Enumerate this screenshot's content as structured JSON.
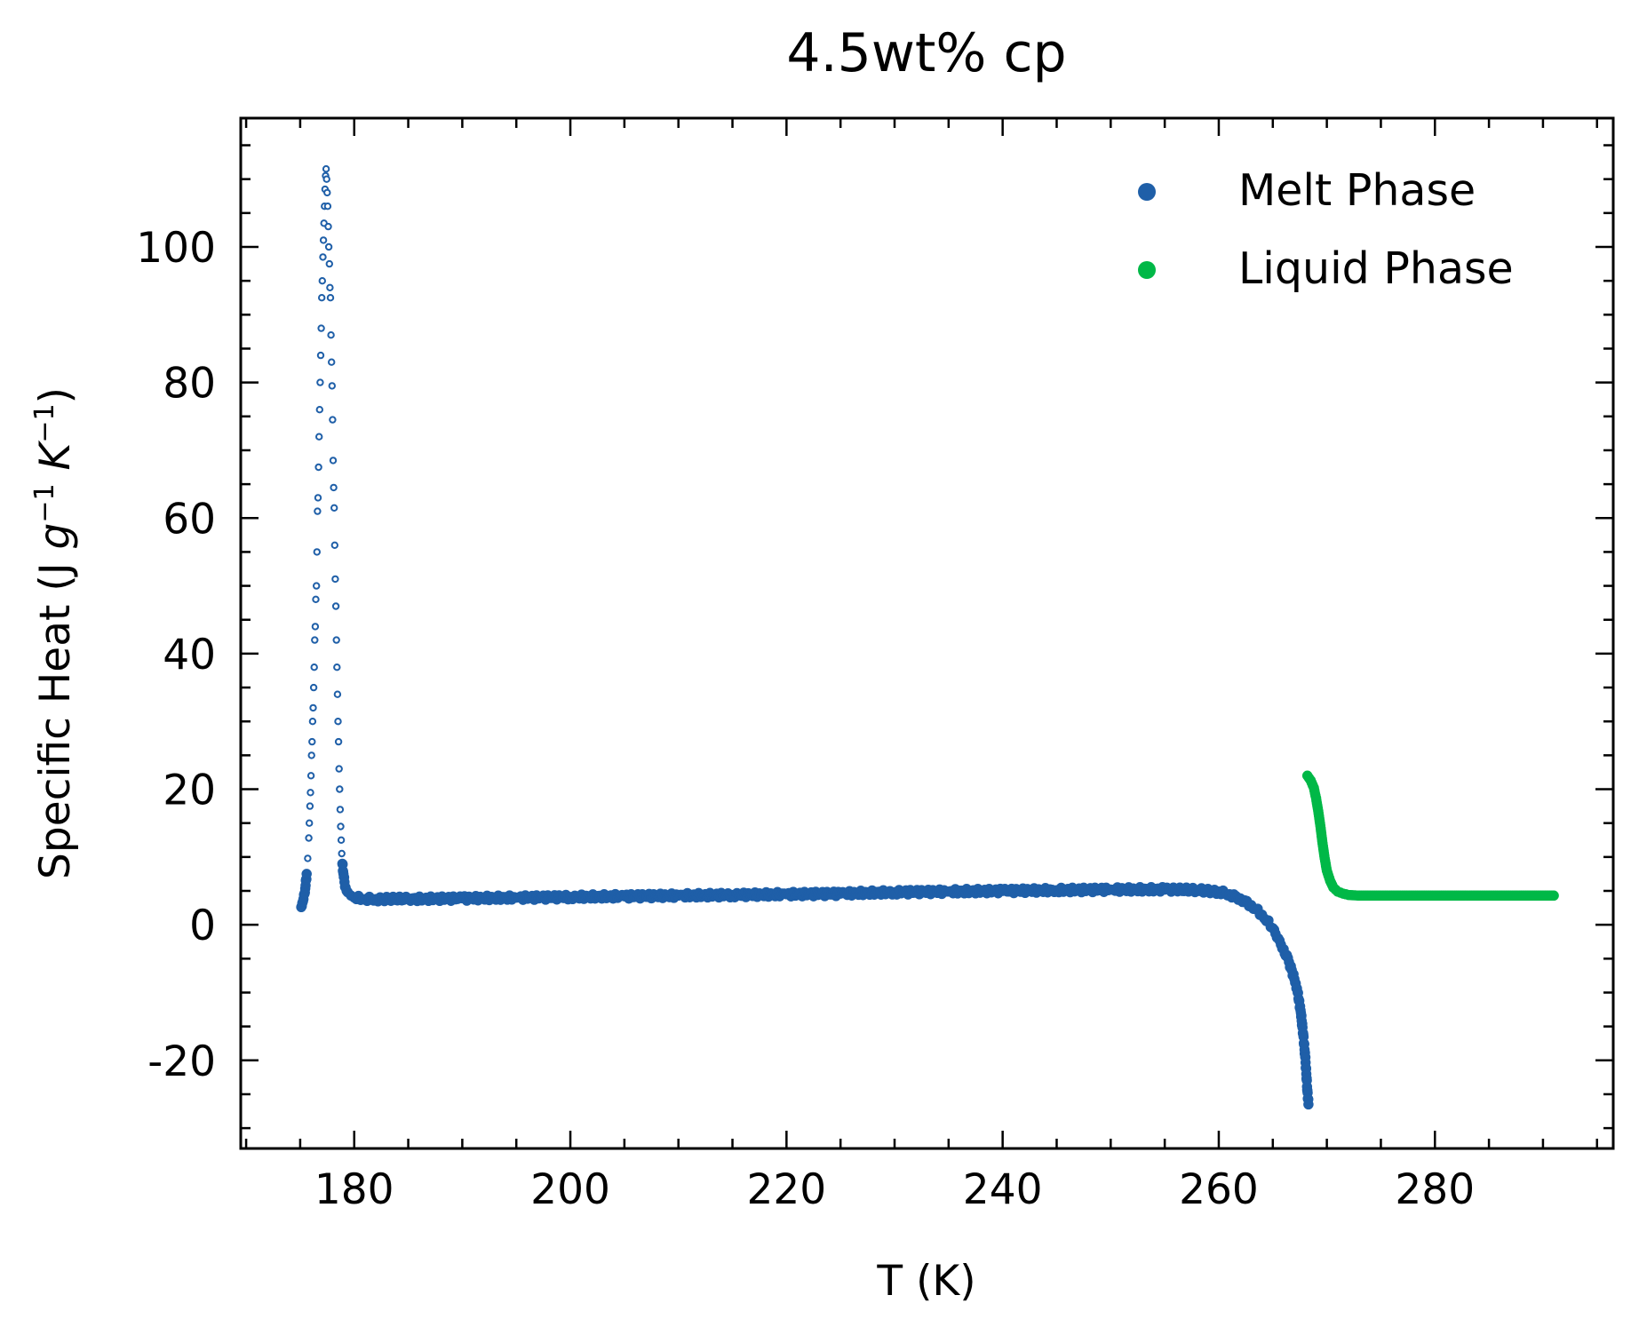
{
  "chart_data": {
    "type": "scatter",
    "title": "4.5wt% cp",
    "xlabel": "T (K)",
    "ylabel": {
      "prefix": "Specific Heat (J ",
      "g": "g",
      "g_exp": "−1",
      "K": "K",
      "K_exp": "−1",
      "suffix": ")"
    },
    "xlim": [
      169.5,
      296.5
    ],
    "ylim": [
      -33.0,
      119.0
    ],
    "x_ticks": [
      180,
      200,
      220,
      240,
      260,
      280
    ],
    "y_ticks": [
      -20,
      0,
      20,
      40,
      60,
      80,
      100
    ],
    "x_tick_labels": [
      "180",
      "200",
      "220",
      "240",
      "260",
      "280"
    ],
    "y_tick_labels": [
      "-20",
      "0",
      "20",
      "40",
      "60",
      "80",
      "100"
    ],
    "grid": false,
    "legend_position": "top-right",
    "series": [
      {
        "name": "Melt Phase",
        "color": "#1f5fa8",
        "points": [
          [
            175.1,
            2.6
          ],
          [
            175.2,
            3.2
          ],
          [
            175.3,
            3.8
          ],
          [
            175.4,
            4.6
          ],
          [
            175.5,
            5.8
          ],
          [
            175.6,
            7.5
          ],
          [
            175.7,
            9.8
          ],
          [
            175.8,
            12.8
          ],
          [
            175.85,
            15.0
          ],
          [
            175.9,
            17.5
          ],
          [
            175.95,
            19.5
          ],
          [
            176.0,
            22.0
          ],
          [
            176.05,
            25.0
          ],
          [
            176.1,
            27.0
          ],
          [
            176.15,
            30.0
          ],
          [
            176.2,
            32.0
          ],
          [
            176.25,
            35.0
          ],
          [
            176.3,
            38.0
          ],
          [
            176.35,
            42.0
          ],
          [
            176.4,
            44.0
          ],
          [
            176.45,
            48.0
          ],
          [
            176.5,
            50.0
          ],
          [
            176.55,
            55.0
          ],
          [
            176.6,
            61.0
          ],
          [
            176.65,
            63.0
          ],
          [
            176.7,
            67.5
          ],
          [
            176.75,
            72.0
          ],
          [
            176.8,
            76.0
          ],
          [
            176.85,
            80.0
          ],
          [
            176.9,
            84.0
          ],
          [
            176.95,
            88.0
          ],
          [
            177.0,
            92.5
          ],
          [
            177.05,
            95.0
          ],
          [
            177.1,
            98.5
          ],
          [
            177.15,
            101.0
          ],
          [
            177.2,
            103.5
          ],
          [
            177.25,
            106.0
          ],
          [
            177.3,
            108.5
          ],
          [
            177.35,
            110.5
          ],
          [
            177.4,
            111.5
          ],
          [
            177.45,
            110.0
          ],
          [
            177.5,
            108.0
          ],
          [
            177.55,
            106.0
          ],
          [
            177.6,
            103.0
          ],
          [
            177.65,
            100.0
          ],
          [
            177.7,
            97.5
          ],
          [
            177.75,
            94.0
          ],
          [
            177.8,
            92.5
          ],
          [
            177.85,
            87.0
          ],
          [
            177.9,
            83.0
          ],
          [
            177.95,
            79.5
          ],
          [
            178.0,
            74.5
          ],
          [
            178.05,
            68.5
          ],
          [
            178.1,
            64.5
          ],
          [
            178.15,
            61.5
          ],
          [
            178.2,
            56.0
          ],
          [
            178.25,
            51.0
          ],
          [
            178.3,
            47.0
          ],
          [
            178.35,
            42.0
          ],
          [
            178.4,
            38.0
          ],
          [
            178.45,
            34.0
          ],
          [
            178.5,
            30.0
          ],
          [
            178.55,
            27.0
          ],
          [
            178.6,
            23.0
          ],
          [
            178.65,
            20.0
          ],
          [
            178.7,
            17.0
          ],
          [
            178.75,
            14.5
          ],
          [
            178.8,
            12.5
          ],
          [
            178.85,
            10.5
          ],
          [
            178.9,
            9.0
          ],
          [
            179.0,
            7.5
          ],
          [
            179.1,
            6.3
          ],
          [
            179.2,
            5.5
          ],
          [
            179.4,
            4.8
          ],
          [
            179.7,
            4.3
          ],
          [
            180.0,
            4.0
          ],
          [
            181.0,
            3.8
          ],
          [
            182.0,
            3.8
          ],
          [
            185.0,
            3.8
          ],
          [
            190.0,
            3.9
          ],
          [
            195.0,
            4.0
          ],
          [
            200.0,
            4.1
          ],
          [
            205.0,
            4.2
          ],
          [
            210.0,
            4.3
          ],
          [
            215.0,
            4.4
          ],
          [
            220.0,
            4.5
          ],
          [
            225.0,
            4.6
          ],
          [
            230.0,
            4.8
          ],
          [
            235.0,
            4.9
          ],
          [
            240.0,
            5.0
          ],
          [
            245.0,
            5.1
          ],
          [
            250.0,
            5.2
          ],
          [
            255.0,
            5.2
          ],
          [
            258.0,
            5.1
          ],
          [
            260.0,
            4.9
          ],
          [
            261.0,
            4.5
          ],
          [
            262.0,
            3.9
          ],
          [
            263.0,
            2.9
          ],
          [
            264.0,
            1.5
          ],
          [
            265.0,
            -0.5
          ],
          [
            265.5,
            -2.0
          ],
          [
            266.0,
            -3.6
          ],
          [
            266.5,
            -5.5
          ],
          [
            267.0,
            -8.0
          ],
          [
            267.3,
            -10.0
          ],
          [
            267.6,
            -13.0
          ],
          [
            267.8,
            -16.0
          ],
          [
            268.0,
            -19.5
          ],
          [
            268.1,
            -22.0
          ],
          [
            268.2,
            -24.5
          ],
          [
            268.3,
            -26.5
          ]
        ]
      },
      {
        "name": "Liquid Phase",
        "color": "#00b847",
        "points": [
          [
            268.2,
            22.0
          ],
          [
            268.5,
            21.3
          ],
          [
            268.8,
            20.2
          ],
          [
            269.0,
            18.7
          ],
          [
            269.2,
            16.8
          ],
          [
            269.4,
            14.6
          ],
          [
            269.6,
            12.0
          ],
          [
            269.8,
            9.8
          ],
          [
            270.0,
            8.0
          ],
          [
            270.3,
            6.5
          ],
          [
            270.6,
            5.5
          ],
          [
            271.0,
            4.9
          ],
          [
            271.5,
            4.6
          ],
          [
            272.0,
            4.4
          ],
          [
            273.0,
            4.3
          ],
          [
            275.0,
            4.3
          ],
          [
            278.0,
            4.3
          ],
          [
            281.0,
            4.3
          ],
          [
            284.0,
            4.3
          ],
          [
            287.0,
            4.3
          ],
          [
            289.0,
            4.3
          ],
          [
            291.0,
            4.3
          ]
        ]
      }
    ]
  }
}
